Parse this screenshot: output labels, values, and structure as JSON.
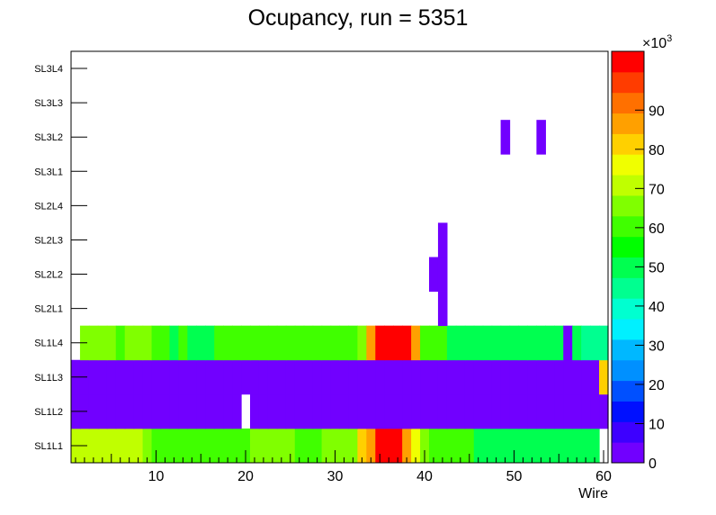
{
  "chart_data": {
    "type": "heatmap",
    "title": "Ocupancy, run = 5351",
    "xlabel": "Wire",
    "ylabel": "",
    "xlim": [
      0.5,
      60.5
    ],
    "x_ticks": [
      10,
      20,
      30,
      40,
      50,
      60
    ],
    "y_categories": [
      "SL1L1",
      "SL1L2",
      "SL1L3",
      "SL1L4",
      "SL2L1",
      "SL2L2",
      "SL2L3",
      "SL2L4",
      "SL3L1",
      "SL3L2",
      "SL3L3",
      "SL3L4"
    ],
    "z_range": [
      0,
      105000
    ],
    "z_ticks": [
      0,
      10,
      20,
      30,
      40,
      50,
      60,
      70,
      80,
      90
    ],
    "z_exponent_label": "×10",
    "z_exponent_power": "3",
    "z_palette": [
      "#7100ff",
      "#3d00ff",
      "#0010ff",
      "#0050ff",
      "#0090ff",
      "#00b8ff",
      "#00f0ff",
      "#00ffd0",
      "#00ff90",
      "#00ff50",
      "#00ff00",
      "#40ff00",
      "#80ff00",
      "#c0ff00",
      "#f0ff00",
      "#ffd000",
      "#ffa000",
      "#ff7000",
      "#ff3c00",
      "#ff0000"
    ],
    "rows": [
      {
        "layer": "SL1L1",
        "values": [
          72000,
          72000,
          72000,
          72000,
          72000,
          72000,
          72000,
          72000,
          65000,
          60000,
          58000,
          58000,
          58000,
          60000,
          60000,
          58000,
          60000,
          60000,
          60000,
          60000,
          63000,
          63000,
          63000,
          63000,
          63000,
          60000,
          60000,
          60000,
          63000,
          63000,
          63000,
          63000,
          80000,
          84000,
          100000,
          100000,
          100000,
          84000,
          75000,
          63000,
          60000,
          58000,
          58000,
          58000,
          58000,
          52000,
          49000,
          49000,
          49000,
          49000,
          49000,
          49000,
          49000,
          49000,
          52000,
          52000,
          49000,
          49000,
          49000,
          null
        ]
      },
      {
        "layer": "SL1L2",
        "values": [
          1000,
          1000,
          1000,
          1000,
          1000,
          1000,
          1000,
          1000,
          1000,
          1000,
          1000,
          1000,
          1000,
          1000,
          1000,
          1000,
          1000,
          1000,
          1000,
          null,
          1000,
          1000,
          1000,
          1000,
          1000,
          1000,
          1000,
          1000,
          1000,
          1000,
          1000,
          1000,
          1000,
          1000,
          1000,
          1000,
          1000,
          1000,
          1000,
          1000,
          1000,
          1000,
          1000,
          1000,
          1000,
          1000,
          1000,
          1000,
          1000,
          1000,
          1000,
          1000,
          1000,
          1000,
          1000,
          1000,
          1000,
          1000,
          1000,
          1000
        ]
      },
      {
        "layer": "SL1L3",
        "values": [
          1000,
          1000,
          1000,
          1000,
          1000,
          1000,
          1000,
          1000,
          1000,
          1000,
          1000,
          1000,
          1000,
          1000,
          1000,
          1000,
          1000,
          1000,
          1000,
          1000,
          1000,
          1000,
          1000,
          1000,
          1000,
          1000,
          1000,
          1000,
          1000,
          1000,
          1000,
          1000,
          1000,
          1000,
          1000,
          1000,
          1000,
          1000,
          1000,
          1000,
          1000,
          1000,
          1000,
          1000,
          1000,
          1000,
          1000,
          1000,
          1000,
          1000,
          1000,
          1000,
          1000,
          1000,
          1000,
          1000,
          1000,
          1000,
          1000,
          82000
        ]
      },
      {
        "layer": "SL1L4",
        "values": [
          null,
          63000,
          63000,
          63000,
          63000,
          58000,
          63000,
          63000,
          63000,
          58000,
          58000,
          52000,
          58000,
          52000,
          52000,
          52000,
          58000,
          58000,
          58000,
          58000,
          58000,
          60000,
          60000,
          60000,
          60000,
          58000,
          58000,
          60000,
          60000,
          60000,
          60000,
          60000,
          68000,
          84000,
          100000,
          100000,
          100000,
          100000,
          84000,
          58000,
          58000,
          58000,
          52000,
          52000,
          52000,
          52000,
          52000,
          49000,
          49000,
          49000,
          49000,
          49000,
          49000,
          49000,
          49000,
          1000,
          52000,
          45000,
          45000,
          45000
        ]
      },
      {
        "layer": "SL2L1",
        "values": [
          null,
          null,
          null,
          null,
          null,
          null,
          null,
          null,
          null,
          null,
          null,
          null,
          null,
          null,
          null,
          null,
          null,
          null,
          null,
          null,
          null,
          null,
          null,
          null,
          null,
          null,
          null,
          null,
          null,
          null,
          null,
          null,
          null,
          null,
          null,
          null,
          null,
          null,
          null,
          null,
          null,
          1000,
          null,
          null,
          null,
          null,
          null,
          null,
          null,
          null,
          null,
          null,
          null,
          null,
          null,
          null,
          null,
          null,
          null,
          null
        ]
      },
      {
        "layer": "SL2L2",
        "values": [
          null,
          null,
          null,
          null,
          null,
          null,
          null,
          null,
          null,
          null,
          null,
          null,
          null,
          null,
          null,
          null,
          null,
          null,
          null,
          null,
          null,
          null,
          null,
          null,
          null,
          null,
          null,
          null,
          null,
          null,
          null,
          null,
          null,
          null,
          null,
          null,
          null,
          null,
          null,
          null,
          1000,
          1000,
          null,
          null,
          null,
          null,
          null,
          null,
          null,
          null,
          null,
          null,
          null,
          null,
          null,
          null,
          null,
          null,
          null,
          null
        ]
      },
      {
        "layer": "SL2L3",
        "values": [
          null,
          null,
          null,
          null,
          null,
          null,
          null,
          null,
          null,
          null,
          null,
          null,
          null,
          null,
          null,
          null,
          null,
          null,
          null,
          null,
          null,
          null,
          null,
          null,
          null,
          null,
          null,
          null,
          null,
          null,
          null,
          null,
          null,
          null,
          null,
          null,
          null,
          null,
          null,
          null,
          null,
          1000,
          null,
          null,
          null,
          null,
          null,
          null,
          null,
          null,
          null,
          null,
          null,
          null,
          null,
          null,
          null,
          null,
          null,
          null
        ]
      },
      {
        "layer": "SL2L4",
        "values": [
          null,
          null,
          null,
          null,
          null,
          null,
          null,
          null,
          null,
          null,
          null,
          null,
          null,
          null,
          null,
          null,
          null,
          null,
          null,
          null,
          null,
          null,
          null,
          null,
          null,
          null,
          null,
          null,
          null,
          null,
          null,
          null,
          null,
          null,
          null,
          null,
          null,
          null,
          null,
          null,
          null,
          null,
          null,
          null,
          null,
          null,
          null,
          null,
          null,
          null,
          null,
          null,
          null,
          null,
          null,
          null,
          null,
          null,
          null,
          null
        ]
      },
      {
        "layer": "SL3L1",
        "values": [
          null,
          null,
          null,
          null,
          null,
          null,
          null,
          null,
          null,
          null,
          null,
          null,
          null,
          null,
          null,
          null,
          null,
          null,
          null,
          null,
          null,
          null,
          null,
          null,
          null,
          null,
          null,
          null,
          null,
          null,
          null,
          null,
          null,
          null,
          null,
          null,
          null,
          null,
          null,
          null,
          null,
          null,
          null,
          null,
          null,
          null,
          null,
          null,
          null,
          null,
          null,
          null,
          null,
          null,
          null,
          null,
          null,
          null,
          null,
          null
        ]
      },
      {
        "layer": "SL3L2",
        "values": [
          null,
          null,
          null,
          null,
          null,
          null,
          null,
          null,
          null,
          null,
          null,
          null,
          null,
          null,
          null,
          null,
          null,
          null,
          null,
          null,
          null,
          null,
          null,
          null,
          null,
          null,
          null,
          null,
          null,
          null,
          null,
          null,
          null,
          null,
          null,
          null,
          null,
          null,
          null,
          null,
          null,
          null,
          null,
          null,
          null,
          null,
          null,
          null,
          1000,
          null,
          null,
          null,
          1000,
          null,
          null,
          null,
          null,
          null,
          null,
          null
        ]
      },
      {
        "layer": "SL3L3",
        "values": [
          null,
          null,
          null,
          null,
          null,
          null,
          null,
          null,
          null,
          null,
          null,
          null,
          null,
          null,
          null,
          null,
          null,
          null,
          null,
          null,
          null,
          null,
          null,
          null,
          null,
          null,
          null,
          null,
          null,
          null,
          null,
          null,
          null,
          null,
          null,
          null,
          null,
          null,
          null,
          null,
          null,
          null,
          null,
          null,
          null,
          null,
          null,
          null,
          null,
          null,
          null,
          null,
          null,
          null,
          null,
          null,
          null,
          null,
          null,
          null
        ]
      },
      {
        "layer": "SL3L4",
        "values": [
          null,
          null,
          null,
          null,
          null,
          null,
          null,
          null,
          null,
          null,
          null,
          null,
          null,
          null,
          null,
          null,
          null,
          null,
          null,
          null,
          null,
          null,
          null,
          null,
          null,
          null,
          null,
          null,
          null,
          null,
          null,
          null,
          null,
          null,
          null,
          null,
          null,
          null,
          null,
          null,
          null,
          null,
          null,
          null,
          null,
          null,
          null,
          null,
          null,
          null,
          null,
          null,
          null,
          null,
          null,
          null,
          null,
          null,
          null,
          null
        ]
      }
    ]
  }
}
